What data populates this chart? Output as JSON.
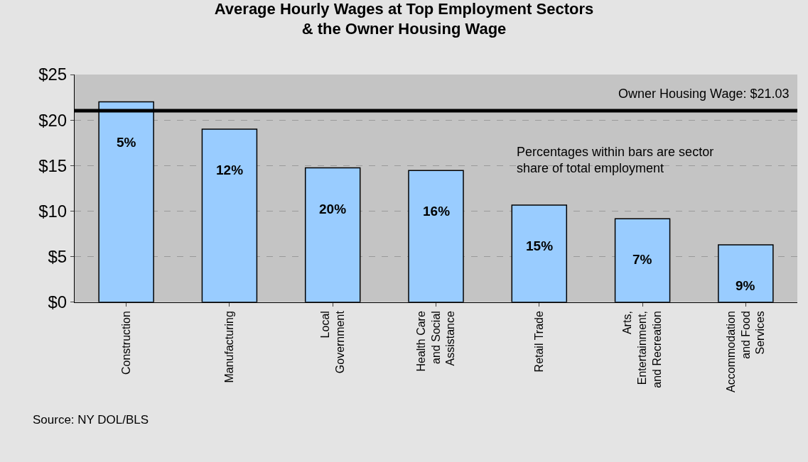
{
  "chart_data": {
    "type": "bar",
    "title": "Average Hourly Wages at Top Employment Sectors\n& the Owner Housing Wage",
    "categories": [
      "Construction",
      "Manufacturing",
      "Local Government",
      "Health Care and Social Assistance",
      "Retail Trade",
      "Arts, Entertainment, and Recreation",
      "Accommodation and Food Services"
    ],
    "values": [
      22.0,
      19.0,
      14.75,
      14.45,
      10.65,
      9.15,
      6.3
    ],
    "color": "#99ccff",
    "ylim": [
      0,
      25
    ],
    "yticks": [
      {
        "value": 0,
        "label": "$0"
      },
      {
        "value": 5,
        "label": "$5"
      },
      {
        "value": 10,
        "label": "$10"
      },
      {
        "value": 15,
        "label": "$15"
      },
      {
        "value": 20,
        "label": "$20"
      },
      {
        "value": 25,
        "label": "$25"
      }
    ],
    "grid": "y",
    "ref_lines": [
      {
        "axis": "y",
        "value": 21.03,
        "label": "Owner Housing Wage: $21.03",
        "color": "#000000",
        "line_style": "solid"
      }
    ],
    "annotations": [
      "Percentages within bars are sector share of total employment",
      "Source: NY DOL/BLS",
      "5%",
      "12%",
      "20%",
      "16%",
      "15%",
      "7%",
      "9%"
    ]
  }
}
